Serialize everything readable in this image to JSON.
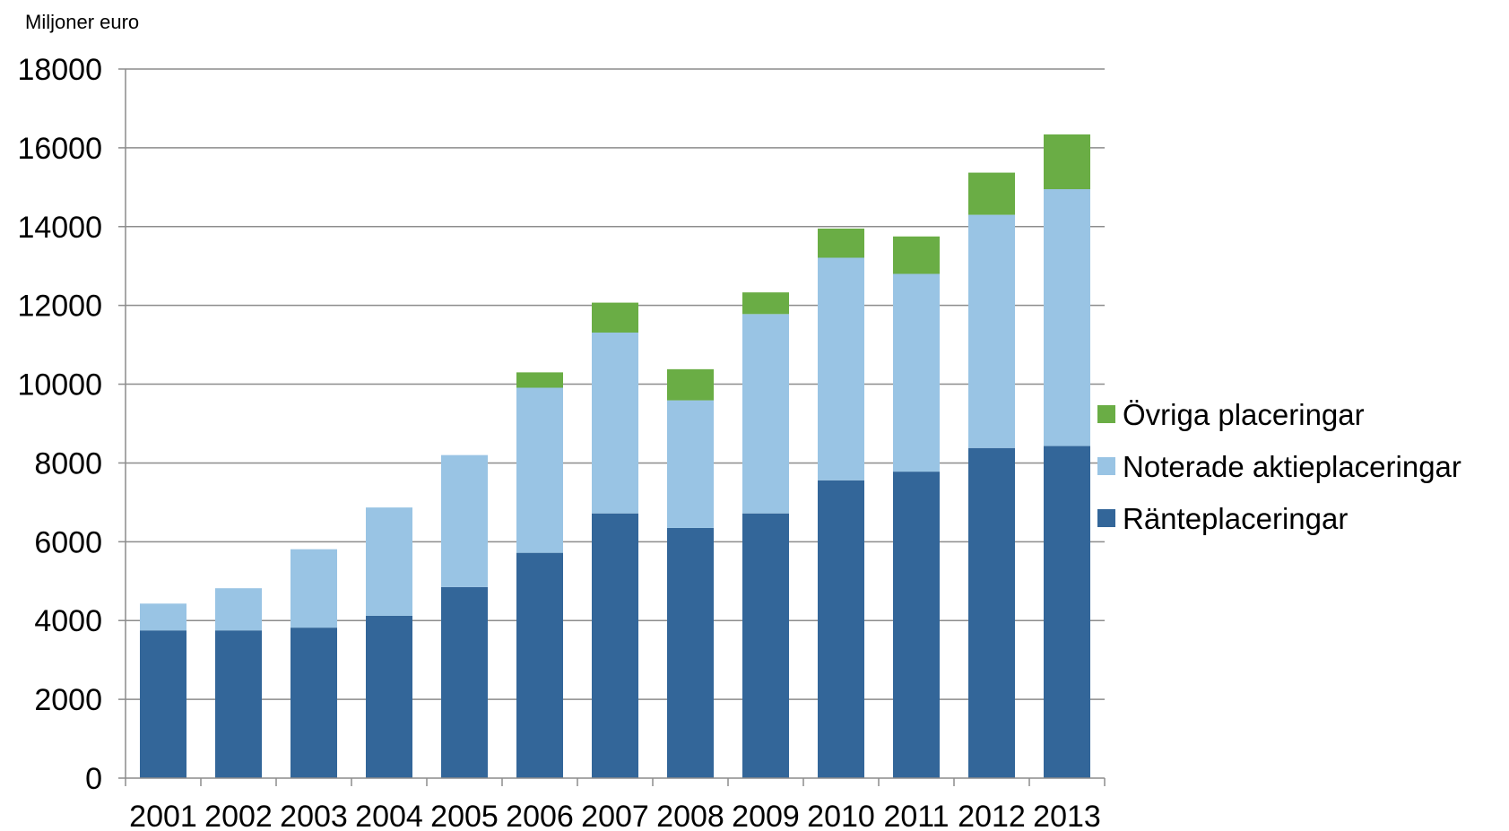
{
  "chart_data": {
    "type": "bar",
    "stacked": true,
    "unit_label": "Miljoner euro",
    "categories": [
      "2001",
      "2002",
      "2003",
      "2004",
      "2005",
      "2006",
      "2007",
      "2008",
      "2009",
      "2010",
      "2011",
      "2012",
      "2013"
    ],
    "series": [
      {
        "name": "Ränteplaceringar",
        "color": "#336699",
        "values": [
          3750,
          3750,
          3820,
          4120,
          4850,
          5720,
          6720,
          6350,
          6720,
          7560,
          7780,
          8380,
          8430
        ]
      },
      {
        "name": "Noterade aktieplaceringar",
        "color": "#99c4e4",
        "values": [
          680,
          1070,
          1990,
          2750,
          3350,
          4190,
          4590,
          3240,
          5060,
          5650,
          5020,
          5920,
          6520
        ]
      },
      {
        "name": "Övriga placeringar",
        "color": "#6aad45",
        "values": [
          0,
          0,
          0,
          0,
          0,
          390,
          760,
          790,
          550,
          740,
          950,
          1070,
          1390
        ]
      }
    ],
    "y_ticks": [
      "0",
      "2000",
      "4000",
      "6000",
      "8000",
      "10000",
      "12000",
      "14000",
      "16000",
      "18000"
    ],
    "ylim": [
      0,
      18000
    ],
    "grid": true,
    "legend_position": "right",
    "legend_order": [
      "Övriga placeringar",
      "Noterade aktieplaceringar",
      "Ränteplaceringar"
    ],
    "colors": {
      "gridline": "#8c8c8c",
      "axis": "#8c8c8c"
    }
  }
}
